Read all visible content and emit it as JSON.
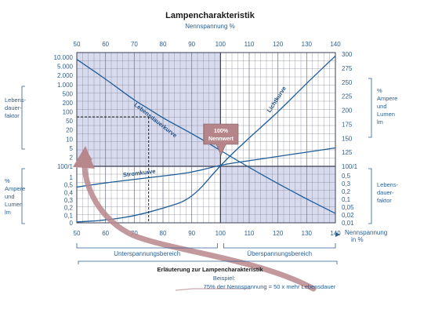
{
  "colors": {
    "axis_text": "#2b5f93",
    "curve": "#1f5d99",
    "shade": "#d8daee",
    "grid": "#7a7f8e",
    "arrow": "#b8878c",
    "marker": "#b5858a"
  },
  "chart_data": {
    "type": "line",
    "title": "Lampencharakteristik",
    "top_axis_label": "Nennspannung %",
    "x_ticks": [
      50,
      60,
      70,
      80,
      90,
      100,
      110,
      120,
      130,
      140
    ],
    "xlim": [
      50,
      140
    ],
    "x_axis_label_right": [
      "Nennspannung",
      "in %"
    ],
    "left_upper_ticks": [
      "10.000",
      "5.000",
      "2.000",
      "1.000",
      "500",
      "200",
      "100",
      "50",
      "20",
      "10",
      "5",
      "2",
      "100/1"
    ],
    "left_lower_ticks": [
      "1",
      "0,5",
      "0,4",
      "0,3",
      "0,2",
      "0,1",
      "0"
    ],
    "right_upper_ticks": [
      "300",
      "275",
      "250",
      "225",
      "200",
      "175",
      "150",
      "125",
      "100/1"
    ],
    "right_lower_ticks": [
      "0,5",
      "0,3",
      "0,2",
      "0,1",
      "0,05",
      "0,02",
      "0,01"
    ],
    "left_upper_label": [
      "Lebens-",
      "dauer-",
      "faktor"
    ],
    "left_lower_label": [
      "%",
      "Ampere",
      "und",
      "Lumen",
      "lm"
    ],
    "right_upper_label": [
      "%",
      "Ampere",
      "und",
      "Lumen",
      "lm"
    ],
    "right_lower_label": [
      "Lebens-",
      "dauer-",
      "faktor"
    ],
    "series": [
      {
        "name": "Lebensdauerkurve",
        "x": [
          50,
          60,
          70,
          75,
          80,
          90,
          100,
          110,
          120,
          130,
          140
        ],
        "y_rel": [
          0.04,
          0.155,
          0.28,
          0.33,
          0.385,
          0.475,
          0.575,
          0.675,
          0.77,
          0.86,
          0.945
        ]
      },
      {
        "name": "Lichtkurve",
        "x": [
          50,
          60,
          70,
          80,
          90,
          100,
          110,
          120,
          130,
          140
        ],
        "y_rel": [
          0.995,
          0.985,
          0.96,
          0.915,
          0.86,
          0.66,
          0.5,
          0.35,
          0.18,
          0.02
        ]
      },
      {
        "name": "Stromkurve",
        "x": [
          50,
          60,
          70,
          80,
          90,
          100,
          110,
          120,
          130,
          140
        ],
        "y_rel": [
          0.79,
          0.765,
          0.745,
          0.725,
          0.705,
          0.66,
          0.635,
          0.61,
          0.585,
          0.56
        ]
      }
    ],
    "marker_label": [
      "100%",
      "Nennwert"
    ],
    "regions": [
      "Unterspannungsbereich",
      "Überspannungsbereich"
    ],
    "example": {
      "x": 75,
      "y": "50"
    }
  },
  "legend_note": {
    "heading": "Erläuterung zur Lampencharakteristik",
    "line1": "Beispiel:",
    "line2": "75% der Nennspannung  =  50 x mehr Lebensdauer"
  }
}
